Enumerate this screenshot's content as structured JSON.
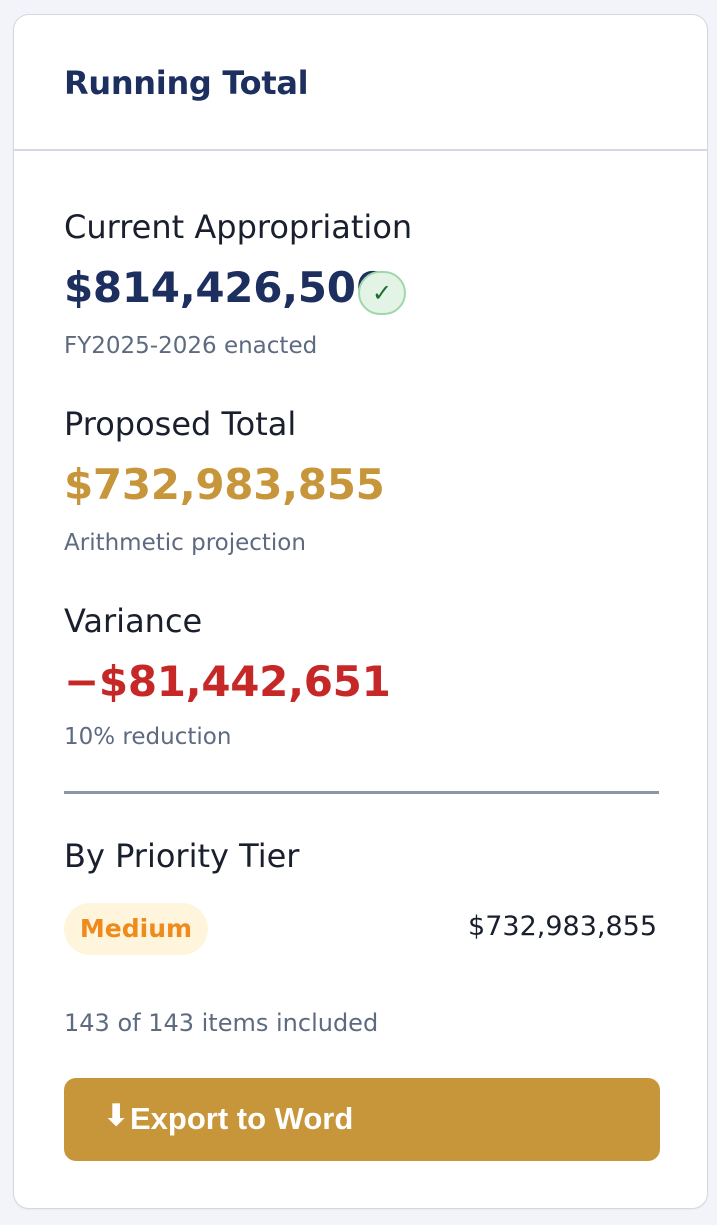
{
  "panel": {
    "title": "Running Total"
  },
  "current": {
    "label": "Current Appropriation",
    "amount": "$814,426,506",
    "check_icon": "checkmark-icon",
    "check_glyph": "✓",
    "note": "FY2025-2026 enacted",
    "color": "#1c2f5f"
  },
  "proposed": {
    "label": "Proposed Total",
    "amount": "$732,983,855",
    "note": "Arithmetic projection",
    "color": "#c8963a"
  },
  "variance": {
    "label": "Variance",
    "amount": "−$81,442,651",
    "note": "10% reduction",
    "color": "#c62828"
  },
  "priority": {
    "heading": "By Priority Tier",
    "tiers": [
      {
        "name": "Medium",
        "amount": "$732,983,855",
        "color": "#ef8a1c"
      }
    ]
  },
  "items_included": "143 of 143 items included",
  "export": {
    "icon": "download-arrow-icon",
    "glyph": "⬇",
    "label": "Export to Word",
    "color": "#c8963a"
  }
}
